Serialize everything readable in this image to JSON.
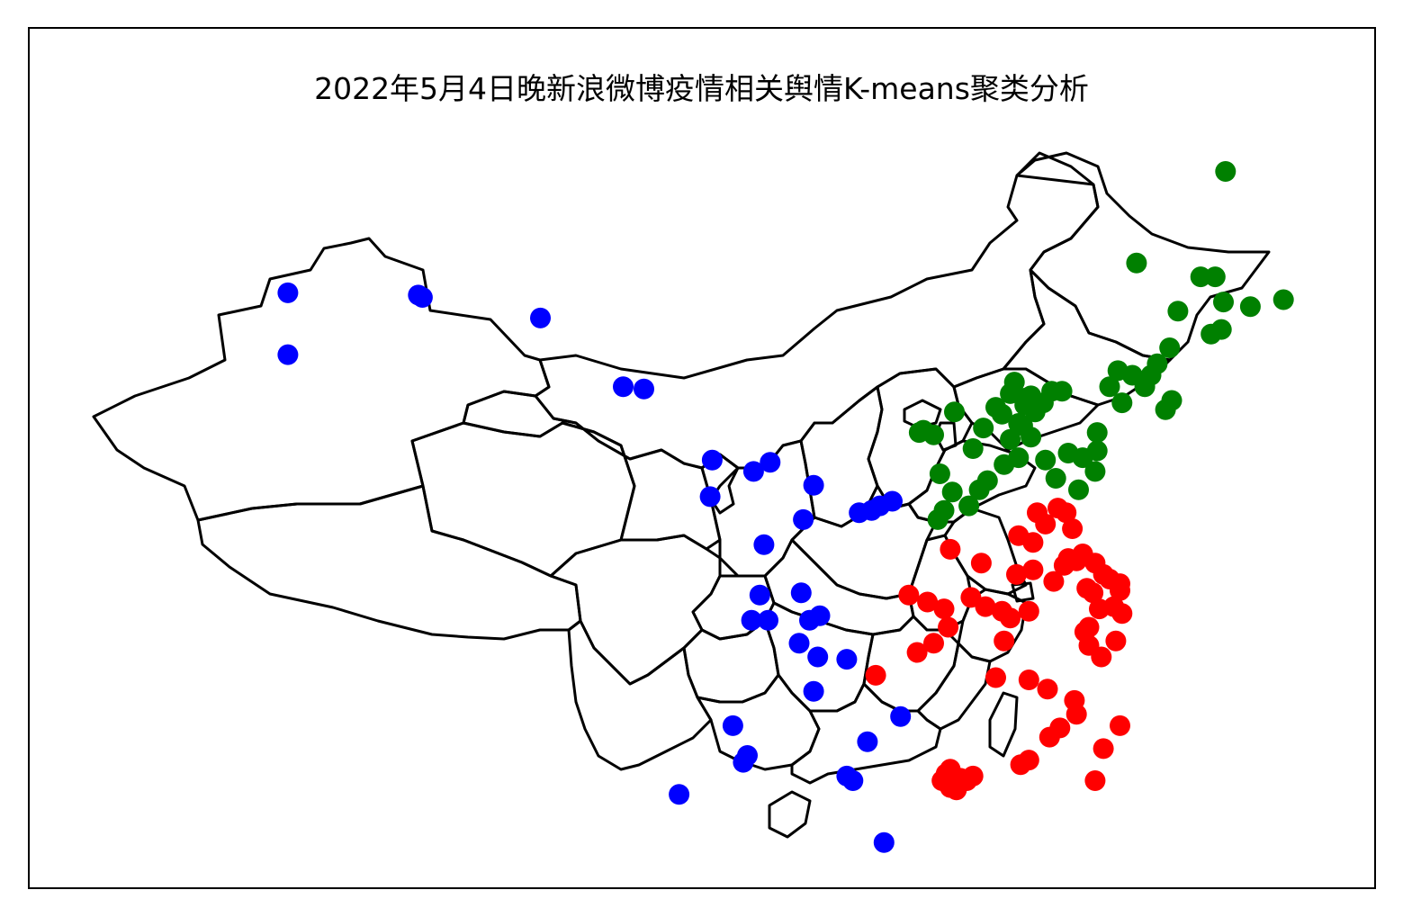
{
  "title": "2022年5月4日晚新浪微博疫情相关舆情K-means聚类分析",
  "colors": {
    "cluster_a": "#0000ff",
    "cluster_b": "#008000",
    "cluster_c": "#ff0000",
    "outline": "#000000"
  },
  "chart_data": {
    "type": "scatter",
    "title": "2022年5月4日晚新浪微博疫情相关舆情K-means聚类分析",
    "xlabel": "",
    "ylabel": "",
    "grid": false,
    "basemap": "China provincial boundaries",
    "x_units": "longitude (deg E)",
    "y_units": "latitude (deg N)",
    "xlim": [
      72,
      137
    ],
    "ylim": [
      17,
      55
    ],
    "series": [
      {
        "color": "#0000ff",
        "points": [
          [
            81.3,
            43.9
          ],
          [
            87.6,
            43.8
          ],
          [
            87.8,
            43.7
          ],
          [
            93.5,
            42.8
          ],
          [
            81.3,
            41.2
          ],
          [
            97.5,
            39.8
          ],
          [
            98.5,
            39.7
          ],
          [
            101.8,
            36.6
          ],
          [
            103.8,
            36.1
          ],
          [
            104.6,
            36.5
          ],
          [
            101.7,
            35.0
          ],
          [
            106.7,
            35.5
          ],
          [
            106.2,
            34.0
          ],
          [
            108.9,
            34.3
          ],
          [
            109.5,
            34.4
          ],
          [
            109.9,
            34.6
          ],
          [
            110.5,
            34.8
          ],
          [
            104.3,
            32.9
          ],
          [
            106.1,
            30.8
          ],
          [
            104.1,
            30.7
          ],
          [
            104.5,
            29.6
          ],
          [
            103.7,
            29.6
          ],
          [
            106.0,
            28.6
          ],
          [
            106.5,
            29.6
          ],
          [
            107.0,
            29.8
          ],
          [
            106.9,
            28.0
          ],
          [
            108.3,
            27.9
          ],
          [
            106.7,
            26.5
          ],
          [
            110.9,
            25.4
          ],
          [
            109.3,
            24.3
          ],
          [
            102.8,
            25.0
          ],
          [
            103.3,
            23.4
          ],
          [
            103.5,
            23.7
          ],
          [
            100.2,
            22.0
          ],
          [
            108.3,
            22.8
          ],
          [
            108.6,
            22.6
          ],
          [
            110.1,
            19.9
          ]
        ]
      },
      {
        "color": "#008000",
        "points": [
          [
            126.6,
            49.2
          ],
          [
            122.3,
            45.2
          ],
          [
            125.4,
            44.6
          ],
          [
            126.1,
            44.6
          ],
          [
            124.3,
            43.1
          ],
          [
            126.5,
            43.5
          ],
          [
            127.8,
            43.3
          ],
          [
            129.4,
            43.6
          ],
          [
            125.9,
            42.1
          ],
          [
            126.4,
            42.3
          ],
          [
            123.9,
            41.5
          ],
          [
            122.1,
            40.3
          ],
          [
            122.7,
            39.8
          ],
          [
            123.3,
            40.8
          ],
          [
            123.0,
            40.3
          ],
          [
            121.0,
            39.8
          ],
          [
            121.4,
            40.5
          ],
          [
            121.6,
            39.1
          ],
          [
            124.0,
            39.2
          ],
          [
            123.7,
            38.8
          ],
          [
            120.4,
            37.8
          ],
          [
            116.4,
            40.0
          ],
          [
            116.2,
            39.5
          ],
          [
            116.9,
            39.3
          ],
          [
            117.2,
            39.4
          ],
          [
            116.9,
            39.0
          ],
          [
            117.8,
            39.1
          ],
          [
            118.2,
            39.6
          ],
          [
            118.7,
            39.6
          ],
          [
            117.4,
            38.7
          ],
          [
            116.6,
            38.2
          ],
          [
            116.8,
            38.1
          ],
          [
            115.8,
            38.6
          ],
          [
            115.5,
            38.9
          ],
          [
            116.2,
            37.5
          ],
          [
            117.2,
            37.6
          ],
          [
            114.9,
            38.0
          ],
          [
            114.4,
            37.1
          ],
          [
            113.5,
            38.7
          ],
          [
            112.0,
            37.9
          ],
          [
            111.8,
            37.8
          ],
          [
            112.5,
            37.7
          ],
          [
            112.8,
            36.0
          ],
          [
            113.4,
            35.2
          ],
          [
            114.2,
            34.6
          ],
          [
            114.7,
            35.3
          ],
          [
            115.1,
            35.7
          ],
          [
            115.9,
            36.4
          ],
          [
            116.6,
            36.7
          ],
          [
            117.9,
            36.6
          ],
          [
            118.4,
            35.8
          ],
          [
            119.0,
            36.9
          ],
          [
            119.7,
            36.7
          ],
          [
            120.4,
            37.0
          ],
          [
            119.5,
            35.3
          ],
          [
            120.3,
            36.1
          ],
          [
            113.0,
            34.4
          ],
          [
            112.7,
            34.0
          ]
        ]
      },
      {
        "color": "#ff0000",
        "points": [
          [
            118.5,
            34.5
          ],
          [
            117.5,
            34.3
          ],
          [
            117.9,
            33.8
          ],
          [
            116.6,
            33.3
          ],
          [
            117.3,
            33.0
          ],
          [
            118.9,
            34.3
          ],
          [
            119.2,
            33.6
          ],
          [
            119.7,
            32.5
          ],
          [
            119.0,
            32.3
          ],
          [
            118.8,
            32.0
          ],
          [
            119.4,
            32.2
          ],
          [
            120.3,
            32.1
          ],
          [
            120.7,
            31.6
          ],
          [
            121.0,
            31.4
          ],
          [
            121.5,
            31.2
          ],
          [
            121.5,
            30.9
          ],
          [
            120.2,
            30.8
          ],
          [
            120.5,
            30.1
          ],
          [
            121.2,
            30.2
          ],
          [
            121.6,
            29.9
          ],
          [
            121.3,
            28.7
          ],
          [
            120.6,
            28.0
          ],
          [
            119.8,
            29.1
          ],
          [
            120.0,
            29.3
          ],
          [
            120.0,
            28.5
          ],
          [
            119.9,
            31.0
          ],
          [
            118.3,
            31.3
          ],
          [
            117.3,
            31.8
          ],
          [
            116.5,
            31.6
          ],
          [
            114.8,
            32.1
          ],
          [
            113.3,
            32.7
          ],
          [
            111.3,
            30.7
          ],
          [
            112.2,
            30.4
          ],
          [
            113.0,
            30.1
          ],
          [
            114.3,
            30.6
          ],
          [
            115.0,
            30.2
          ],
          [
            115.8,
            30.0
          ],
          [
            116.2,
            29.7
          ],
          [
            117.1,
            30.0
          ],
          [
            113.2,
            29.3
          ],
          [
            112.5,
            28.6
          ],
          [
            111.7,
            28.2
          ],
          [
            109.7,
            27.2
          ],
          [
            115.9,
            28.7
          ],
          [
            115.5,
            27.1
          ],
          [
            117.1,
            27.0
          ],
          [
            118.0,
            26.6
          ],
          [
            119.3,
            26.1
          ],
          [
            119.4,
            25.5
          ],
          [
            118.6,
            24.9
          ],
          [
            118.1,
            24.5
          ],
          [
            121.5,
            25.0
          ],
          [
            120.7,
            24.0
          ],
          [
            120.3,
            22.6
          ],
          [
            117.1,
            23.5
          ],
          [
            116.7,
            23.3
          ],
          [
            113.3,
            23.1
          ],
          [
            113.8,
            22.7
          ],
          [
            114.1,
            22.6
          ],
          [
            113.1,
            22.9
          ],
          [
            113.4,
            22.5
          ],
          [
            113.6,
            22.2
          ],
          [
            114.4,
            22.8
          ],
          [
            112.9,
            22.6
          ],
          [
            113.3,
            22.3
          ]
        ]
      }
    ]
  }
}
